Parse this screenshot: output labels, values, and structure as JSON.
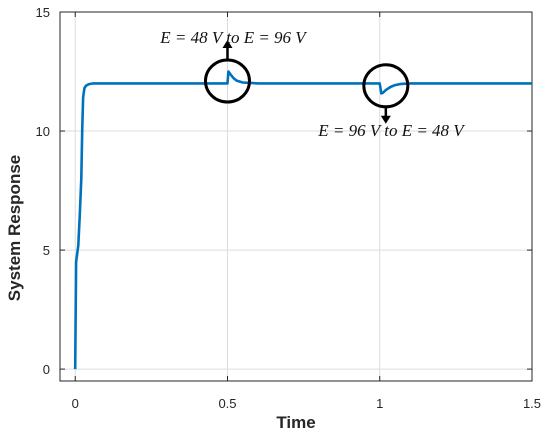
{
  "chart_data": {
    "type": "line",
    "title": "",
    "xlabel": "Time",
    "ylabel": "System Response",
    "xlim": [
      -0.05,
      1.5
    ],
    "ylim": [
      -0.5,
      15
    ],
    "xticks": [
      0,
      0.5,
      1,
      1.5
    ],
    "xtick_labels": [
      "0",
      "0.5",
      "1",
      "1.5"
    ],
    "yticks": [
      0,
      5,
      10,
      15
    ],
    "ytick_labels": [
      "0",
      "5",
      "10",
      "15"
    ],
    "grid": true,
    "series": [
      {
        "color": "#0072BD",
        "x": [
          0,
          0.003,
          0.01,
          0.015,
          0.02,
          0.023,
          0.026,
          0.03,
          0.035,
          0.045,
          0.06,
          0.1,
          0.2,
          0.3,
          0.4,
          0.495,
          0.5,
          0.503,
          0.51,
          0.52,
          0.53,
          0.55,
          0.6,
          0.7,
          0.8,
          0.9,
          0.995,
          1.0,
          1.005,
          1.01,
          1.02,
          1.035,
          1.05,
          1.07,
          1.1,
          1.2,
          1.3,
          1.4,
          1.5
        ],
        "y": [
          0,
          4.5,
          5.2,
          6.5,
          8.0,
          10.0,
          11.4,
          11.8,
          11.9,
          11.97,
          12.0,
          12.0,
          12.0,
          12.0,
          12.0,
          12.0,
          12.0,
          12.5,
          12.38,
          12.22,
          12.12,
          12.04,
          12.0,
          12.0,
          12.0,
          12.0,
          12.0,
          12.0,
          11.58,
          11.6,
          11.72,
          11.85,
          11.93,
          11.98,
          12.0,
          12.0,
          12.0,
          12.0,
          12.0
        ]
      }
    ],
    "annotations": [
      {
        "text": "E = 48 V  to  E = 96 V",
        "at_x": 0.5,
        "at_y": 12.1
      },
      {
        "text": "E = 96 V  to  E = 48 V",
        "at_x": 1.02,
        "at_y": 11.9
      }
    ]
  }
}
